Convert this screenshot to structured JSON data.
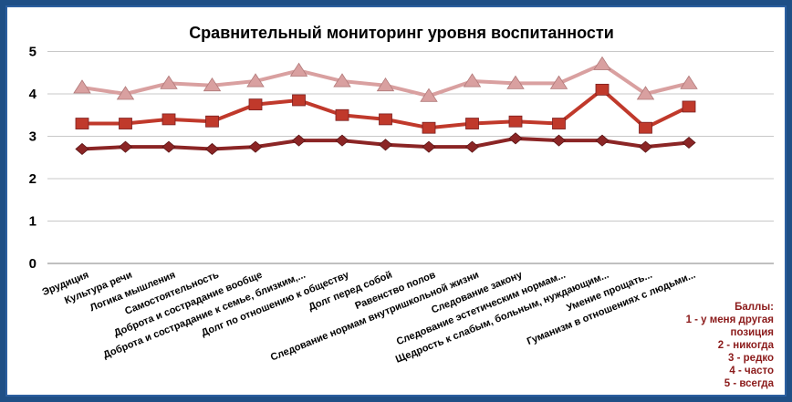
{
  "chart_data": {
    "type": "line",
    "title": "Сравнительный мониторинг уровня воспитанности",
    "xlabel": "",
    "ylabel": "",
    "ylim": [
      0,
      5
    ],
    "yticks": [
      "0",
      "1",
      "2",
      "3",
      "4",
      "5"
    ],
    "grid": true,
    "categories": [
      "Эрудиция",
      "Культура речи",
      "Логика мышления",
      "Самостоятельность",
      "Доброта и сострадание вообще",
      "Доброта и сострадание к семье, близким,...",
      "Долг по отношению к обществу",
      "Долг перед собой",
      "Равенство полов",
      "Следование нормам внутришкольной жизни",
      "Следование закону",
      "Следование эстетическим нормам...",
      "Щедрость к слабым, больным, нуждающим...",
      "Умение прощать...",
      "Гуманизм в отношениях с людьми..."
    ],
    "series": [
      {
        "color": "#d9a0a0",
        "marker": "triangle",
        "values": [
          4.15,
          4.0,
          4.25,
          4.2,
          4.3,
          4.55,
          4.3,
          4.2,
          3.95,
          4.3,
          4.25,
          4.25,
          4.7,
          4.0,
          4.25
        ]
      },
      {
        "color": "#c0392b",
        "marker": "square",
        "values": [
          3.3,
          3.3,
          3.4,
          3.35,
          3.75,
          3.85,
          3.5,
          3.4,
          3.2,
          3.3,
          3.35,
          3.3,
          4.1,
          3.2,
          3.7
        ]
      },
      {
        "color": "#8b2525",
        "marker": "diamond",
        "values": [
          2.7,
          2.75,
          2.75,
          2.7,
          2.75,
          2.9,
          2.9,
          2.8,
          2.75,
          2.75,
          2.95,
          2.9,
          2.9,
          2.75,
          2.85
        ]
      }
    ],
    "legend": {
      "position": "bottom-right",
      "lines": [
        "Баллы:",
        "1 - у меня другая",
        "позиция",
        "2 - никогда",
        "3 - редко",
        "4 - часто",
        "5 - всегда"
      ]
    }
  }
}
